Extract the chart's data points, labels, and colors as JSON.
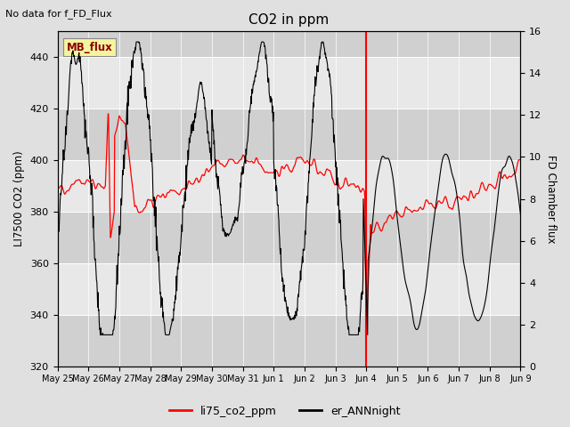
{
  "title": "CO2 in ppm",
  "top_left_text": "No data for f_FD_Flux",
  "legend_box_text": "MB_flux",
  "ylabel_left": "LI7500 CO2 (ppm)",
  "ylabel_right": "FD Chamber flux",
  "ylim_left": [
    320,
    450
  ],
  "ylim_right": [
    0,
    16
  ],
  "yticks_left": [
    320,
    340,
    360,
    380,
    400,
    420,
    440
  ],
  "yticks_right": [
    0,
    2,
    4,
    6,
    8,
    10,
    12,
    14,
    16
  ],
  "xtick_labels": [
    "May 25",
    "May 26",
    "May 27",
    "May 28",
    "May 29",
    "May 30",
    "May 31",
    "Jun 1",
    "Jun 2",
    "Jun 3",
    "Jun 4",
    "Jun 5",
    "Jun 6",
    "Jun 7",
    "Jun 8",
    "Jun 9"
  ],
  "background_color": "#e0e0e0",
  "plot_bg_color": "#e8e8e8",
  "band_light": "#d8d8d8",
  "red_line_color": "#ff0000",
  "black_line_color": "#000000",
  "legend_label_red": "li75_co2_ppm",
  "legend_label_black": "er_ANNnight",
  "vline_x": 10.0,
  "n_points": 1200,
  "figsize": [
    6.4,
    4.8
  ],
  "dpi": 100
}
